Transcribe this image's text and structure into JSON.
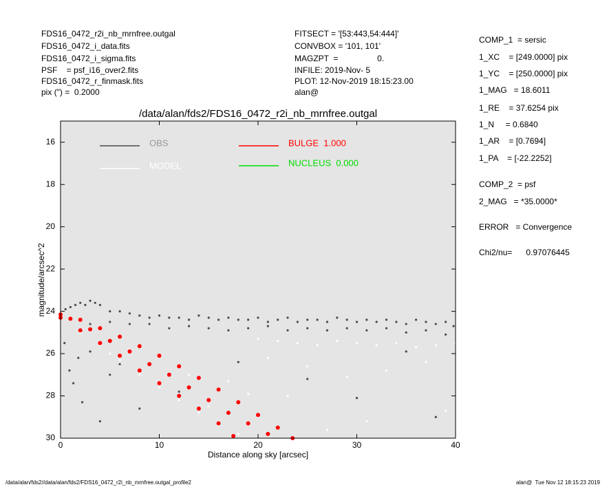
{
  "header": {
    "left": [
      "FDS16_0472_r2i_nb_mrnfree.outgal",
      "FDS16_0472_i_data.fits",
      "FDS16_0472_i_sigma.fits",
      "PSF    = psf_i16_over2.fits",
      "FDS16_0472_r_finmask.fits",
      "pix (\") =  0.2000"
    ],
    "middle": [
      "FITSECT = '[53:443,54:444]'",
      "CONVBOX = '101, 101'",
      "MAGZPT  =                 0.",
      "INFILE: 2019-Nov- 5",
      "PLOT: 12-Nov-2019 18:15:23.00",
      "alan@"
    ]
  },
  "params": [
    "COMP_1  = sersic",
    "1_XC    = [249.0000] pix",
    "1_YC    = [250.0000] pix",
    "1_MAG   = 18.6011",
    "1_RE    = 37.6254 pix",
    "1_N     = 0.6840",
    "1_AR    = [0.7694]",
    "1_PA    = [-22.2252]",
    "COMP_2  = psf",
    "2_MAG   = *35.0000*",
    "ERROR   = Convergence",
    "Chi2/nu=      0.97076445"
  ],
  "footer": {
    "left": "/data/alan/fds2//data/alan/fds2/FDS16_0472_r2i_nb_mrnfree.outgal_profile2",
    "right": "alan@  Tue Nov 12 18:15:23 2019"
  },
  "chart_data": {
    "type": "scatter",
    "title": "/data/alan/fds2/FDS16_0472_r2i_nb_mrnfree.outgal",
    "x_label": "Distance along sky [arcsec]",
    "y_label": "magnitude/arcsec^2",
    "xlim": [
      0,
      40
    ],
    "xticks": [
      0,
      10,
      20,
      30,
      40
    ],
    "ylim": [
      30,
      15
    ],
    "yticks": [
      16,
      18,
      20,
      22,
      24,
      26,
      28,
      30
    ],
    "background": "#e5e5e5",
    "series": [
      {
        "name": "OBS",
        "color": "#4a4a4a",
        "x": [
          0.5,
          1,
          1.5,
          2,
          2.5,
          3,
          3.5,
          4,
          5,
          6,
          7,
          8,
          9,
          10,
          11,
          12,
          13,
          14,
          15,
          16,
          17,
          18,
          19,
          20,
          21,
          22,
          23,
          24,
          25,
          26,
          27,
          28,
          29,
          30,
          31,
          32,
          33,
          34,
          35,
          36,
          37,
          38,
          39,
          39.8,
          3,
          5,
          7,
          9,
          11,
          13,
          15,
          17,
          19,
          21,
          23,
          25,
          27,
          29,
          31,
          33,
          35,
          37,
          39,
          0.4,
          0.9,
          1.3,
          1.8,
          2.2,
          3,
          4,
          5,
          6,
          8,
          12,
          18,
          25,
          30,
          35,
          38
        ],
        "values": [
          23.9,
          23.8,
          23.7,
          23.6,
          23.7,
          23.5,
          23.6,
          23.7,
          24.0,
          24.0,
          24.1,
          24.2,
          24.3,
          24.2,
          24.3,
          24.3,
          24.4,
          24.2,
          24.3,
          24.4,
          24.3,
          24.4,
          24.4,
          24.3,
          24.5,
          24.4,
          24.3,
          24.5,
          24.4,
          24.4,
          24.5,
          24.3,
          24.4,
          24.5,
          24.4,
          24.5,
          24.4,
          24.5,
          24.6,
          24.4,
          24.5,
          24.6,
          24.5,
          24.7,
          24.6,
          24.5,
          24.6,
          24.6,
          24.8,
          24.7,
          24.8,
          24.9,
          24.8,
          24.7,
          24.9,
          24.8,
          24.9,
          24.8,
          24.9,
          24.8,
          25.0,
          24.9,
          25.1,
          25.5,
          26.8,
          27.4,
          26.2,
          28.3,
          25.9,
          29.2,
          27.0,
          26.5,
          28.6,
          27.8,
          26.4,
          27.2,
          28.1,
          25.9,
          29.0
        ]
      },
      {
        "name": "MODEL",
        "color": "#ffffff",
        "x": [
          2,
          4,
          6,
          8,
          10,
          12,
          14,
          16,
          18,
          20,
          22,
          24,
          26,
          28,
          30,
          32,
          34,
          36,
          38,
          40,
          5,
          9,
          13,
          17,
          21,
          25,
          29,
          33,
          37,
          15,
          23,
          31,
          39,
          27,
          19
        ],
        "values": [
          25.0,
          25.6,
          26.3,
          27.0,
          27.6,
          28.2,
          28.8,
          29.4,
          29.8,
          25.3,
          25.4,
          25.5,
          25.6,
          25.4,
          25.5,
          25.6,
          25.5,
          25.7,
          25.6,
          25.5,
          26.0,
          26.5,
          27.0,
          27.3,
          26.2,
          26.6,
          27.1,
          26.8,
          26.4,
          28.5,
          28.0,
          29.2,
          28.7,
          29.6,
          27.9
        ]
      },
      {
        "name": "BULGE  1.000",
        "color": "#ff0000",
        "x": [
          0,
          2,
          4,
          6,
          8,
          10,
          12,
          14,
          16,
          18,
          20,
          22,
          23.5,
          0,
          2,
          4,
          6,
          8,
          10,
          12,
          14,
          16,
          17.5,
          1,
          3,
          5,
          7,
          9,
          11,
          13,
          15,
          17,
          19,
          21
        ],
        "values": [
          24.15,
          24.4,
          24.8,
          25.2,
          25.65,
          26.1,
          26.6,
          27.15,
          27.7,
          28.3,
          28.9,
          29.5,
          30,
          24.3,
          24.9,
          25.5,
          26.1,
          26.8,
          27.4,
          28.0,
          28.6,
          29.3,
          29.9,
          24.35,
          24.85,
          25.4,
          25.9,
          26.5,
          27.0,
          27.6,
          28.2,
          28.8,
          29.3,
          29.8
        ]
      },
      {
        "name": "NUCLEUS  0.000",
        "color": "#00dd00",
        "x": [],
        "values": []
      }
    ]
  }
}
